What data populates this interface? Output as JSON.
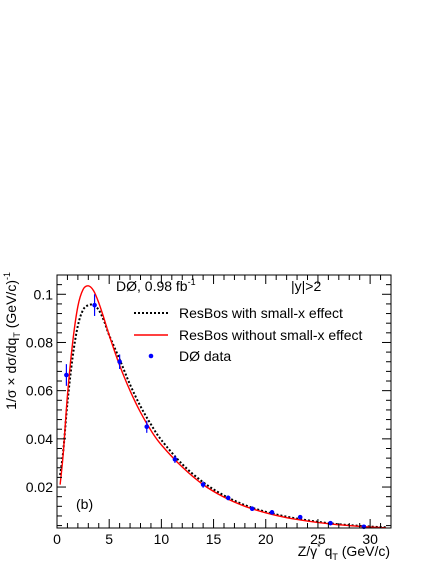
{
  "chart_data": {
    "type": "line",
    "panel_label": "(b)",
    "annotations": {
      "experiment": "DØ, 0.98 fb",
      "experiment_sup": "-1",
      "rapidity_cut": "|y|>2"
    },
    "xlabel": {
      "main": "Z/γ",
      "sup": "*",
      "mid": " q",
      "sub": "T",
      "unit": " (GeV/c)"
    },
    "ylabel": {
      "main": "1/σ × dσ/dq",
      "sub": "T",
      "unit": " (GeV/c)",
      "sup": "-1"
    },
    "xlim": [
      0,
      32
    ],
    "ylim": [
      0.003,
      0.108
    ],
    "x_ticks": [
      0,
      5,
      10,
      15,
      20,
      25,
      30
    ],
    "x_tick_labels": [
      "0",
      "5",
      "10",
      "15",
      "20",
      "25",
      "30"
    ],
    "y_ticks": [
      0.02,
      0.04,
      0.06,
      0.08,
      0.1
    ],
    "y_tick_labels": [
      "0.02",
      "0.04",
      "0.06",
      "0.08",
      "0.1"
    ],
    "legend_position": "top-right",
    "series": [
      {
        "name": "ResBos with small-x effect",
        "style": "dotted",
        "color": "#000000",
        "x": [
          0.3,
          0.6,
          1.0,
          1.5,
          2.0,
          2.5,
          3.0,
          3.5,
          4.0,
          4.5,
          5.0,
          6.0,
          7.0,
          8.0,
          9.0,
          10.0,
          12.0,
          14.0,
          16.0,
          18.0,
          20.0,
          22.0,
          24.0,
          26.0,
          28.0,
          30.0,
          31.5
        ],
        "y": [
          0.025,
          0.035,
          0.055,
          0.074,
          0.087,
          0.0935,
          0.0955,
          0.0955,
          0.0935,
          0.089,
          0.083,
          0.073,
          0.0625,
          0.0535,
          0.046,
          0.0395,
          0.0295,
          0.022,
          0.0165,
          0.0125,
          0.0097,
          0.0077,
          0.0062,
          0.005,
          0.0042,
          0.0036,
          0.0033
        ]
      },
      {
        "name": "ResBos without small-x effect",
        "style": "solid",
        "color": "#ff0000",
        "x": [
          0.3,
          0.6,
          1.0,
          1.5,
          2.0,
          2.5,
          3.0,
          3.5,
          4.0,
          4.5,
          5.0,
          6.0,
          7.0,
          8.0,
          9.0,
          10.0,
          12.0,
          14.0,
          16.0,
          18.0,
          20.0,
          22.0,
          24.0,
          26.0,
          28.0,
          30.0,
          31.5
        ],
        "y": [
          0.021,
          0.034,
          0.058,
          0.08,
          0.095,
          0.102,
          0.1035,
          0.1015,
          0.0965,
          0.09,
          0.083,
          0.0705,
          0.06,
          0.051,
          0.0435,
          0.0375,
          0.0283,
          0.021,
          0.0158,
          0.012,
          0.0093,
          0.0073,
          0.0059,
          0.0048,
          0.004,
          0.0034,
          0.0031
        ]
      },
      {
        "name": "DØ data",
        "style": "markers",
        "color": "#0000ff",
        "x": [
          0.9,
          3.6,
          6.0,
          8.6,
          11.3,
          14.0,
          16.4,
          18.7,
          20.6,
          23.3,
          26.2,
          29.4
        ],
        "y": [
          0.0665,
          0.0955,
          0.072,
          0.045,
          0.0315,
          0.021,
          0.0155,
          0.011,
          0.0095,
          0.0075,
          0.005,
          0.0035
        ],
        "yerr": [
          0.0045,
          0.0045,
          0.003,
          0.0025,
          0.0015,
          0.0013,
          0.001,
          0.0009,
          0.0008,
          0.0006,
          0.0005,
          0.0005
        ]
      }
    ]
  }
}
